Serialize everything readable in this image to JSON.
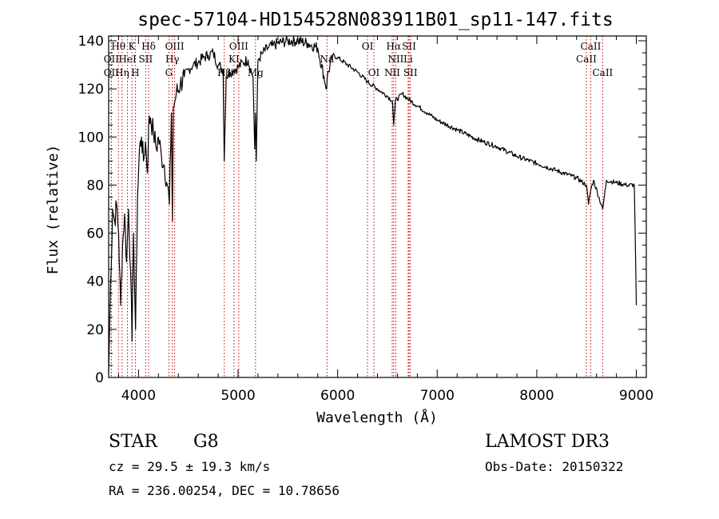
{
  "chart_data": {
    "type": "line",
    "title": "spec-57104-HD154528N083911B01_sp11-147.fits",
    "xlabel": "Wavelength (Å)",
    "ylabel": "Flux (relative)",
    "xlim": [
      3700,
      9100
    ],
    "ylim": [
      0,
      142
    ],
    "x_ticks": [
      4000,
      5000,
      6000,
      7000,
      8000,
      9000
    ],
    "y_ticks": [
      0,
      20,
      40,
      60,
      80,
      100,
      120,
      140
    ],
    "series": [
      {
        "name": "flux",
        "x": [
          3700,
          3720,
          3740,
          3760,
          3780,
          3800,
          3820,
          3840,
          3860,
          3880,
          3900,
          3920,
          3935,
          3950,
          3970,
          3990,
          4010,
          4030,
          4050,
          4070,
          4090,
          4101,
          4120,
          4150,
          4180,
          4200,
          4230,
          4260,
          4290,
          4310,
          4330,
          4340,
          4350,
          4380,
          4420,
          4460,
          4500,
          4550,
          4600,
          4650,
          4700,
          4750,
          4800,
          4850,
          4861,
          4880,
          4920,
          4960,
          5000,
          5050,
          5100,
          5150,
          5167,
          5175,
          5183,
          5200,
          5250,
          5300,
          5350,
          5400,
          5500,
          5600,
          5700,
          5800,
          5890,
          5896,
          5950,
          6000,
          6100,
          6200,
          6300,
          6400,
          6500,
          6550,
          6563,
          6580,
          6650,
          6700,
          6800,
          6900,
          7000,
          7200,
          7400,
          7600,
          7800,
          8000,
          8200,
          8400,
          8498,
          8520,
          8542,
          8570,
          8662,
          8700,
          8800,
          8900,
          8980,
          9000
        ],
        "y": [
          2,
          40,
          70,
          65,
          72,
          60,
          30,
          55,
          68,
          48,
          70,
          45,
          15,
          60,
          20,
          75,
          95,
          100,
          90,
          98,
          85,
          105,
          108,
          102,
          95,
          100,
          92,
          88,
          80,
          72,
          110,
          65,
          112,
          118,
          122,
          125,
          128,
          130,
          131,
          133,
          134,
          135,
          130,
          128,
          90,
          125,
          127,
          128,
          129,
          131,
          132,
          125,
          95,
          110,
          90,
          132,
          135,
          137,
          138,
          139,
          140,
          140,
          139,
          137,
          120,
          125,
          134,
          133,
          130,
          127,
          123,
          120,
          117,
          115,
          105,
          115,
          118,
          116,
          113,
          110,
          107,
          103,
          99,
          96,
          92,
          89,
          86,
          83,
          80,
          72,
          78,
          82,
          70,
          82,
          81,
          80,
          80,
          30
        ]
      }
    ],
    "spectral_lines": [
      {
        "label": "Hθ",
        "wavelength": 3798,
        "row": 1
      },
      {
        "label": "OII",
        "wavelength": 3727,
        "row": 2
      },
      {
        "label": "OII",
        "wavelength": 3727,
        "row": 3
      },
      {
        "label": "Hη",
        "wavelength": 3835,
        "row": 3
      },
      {
        "label": "HeI",
        "wavelength": 3889,
        "row": 2
      },
      {
        "label": "K",
        "wavelength": 3934,
        "row": 1
      },
      {
        "label": "H",
        "wavelength": 3968,
        "row": 3
      },
      {
        "label": "Hδ",
        "wavelength": 4101,
        "row": 1
      },
      {
        "label": "SII",
        "wavelength": 4072,
        "row": 2
      },
      {
        "label": "OIII",
        "wavelength": 4363,
        "row": 1
      },
      {
        "label": "Hγ",
        "wavelength": 4340,
        "row": 2
      },
      {
        "label": "G",
        "wavelength": 4305,
        "row": 3
      },
      {
        "label": "OIII",
        "wavelength": 5007,
        "row": 1
      },
      {
        "label": "KI",
        "wavelength": 4959,
        "row": 2
      },
      {
        "label": "Hβ",
        "wavelength": 4861,
        "row": 3
      },
      {
        "label": "Mg",
        "wavelength": 5175,
        "row": 3
      },
      {
        "label": "Na",
        "wavelength": 5893,
        "row": 2
      },
      {
        "label": "OI",
        "wavelength": 6300,
        "row": 1
      },
      {
        "label": "OI",
        "wavelength": 6364,
        "row": 3
      },
      {
        "label": "Hα",
        "wavelength": 6563,
        "row": 1
      },
      {
        "label": "NII",
        "wavelength": 6584,
        "row": 2
      },
      {
        "label": "NII",
        "wavelength": 6548,
        "row": 3
      },
      {
        "label": "SII",
        "wavelength": 6717,
        "row": 1
      },
      {
        "label": "Li",
        "wavelength": 6708,
        "row": 2
      },
      {
        "label": "SII",
        "wavelength": 6731,
        "row": 3
      },
      {
        "label": "CaII",
        "wavelength": 8542,
        "row": 1
      },
      {
        "label": "CaII",
        "wavelength": 8498,
        "row": 2
      },
      {
        "label": "CaII",
        "wavelength": 8662,
        "row": 3
      }
    ],
    "colors": {
      "flux": "#000000",
      "marker": "#cc0000",
      "frame": "#000000"
    }
  },
  "info": {
    "class": "STAR",
    "subclass": "G8",
    "survey": "LAMOST DR3",
    "cz": "cz = 29.5 ± 19.3 km/s",
    "obs_date": "Obs-Date: 20150322",
    "radec": "RA = 236.00254, DEC =  10.78656"
  }
}
